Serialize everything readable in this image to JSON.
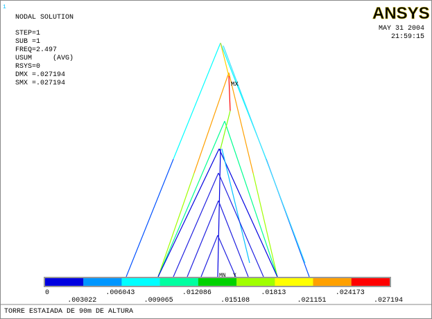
{
  "header": {
    "window_number": "1",
    "title": "NODAL SOLUTION",
    "info": [
      "STEP=1",
      "SUB =1",
      "FREQ=2.497",
      "USUM     (AVG)",
      "RSYS=0",
      "DMX =.027194",
      "SMX =.027194"
    ],
    "logo": "ANSYS",
    "date": "MAY 31 2004",
    "time": "21:59:15"
  },
  "plot": {
    "max_label": "MX",
    "min_label": "MN",
    "axis_label": "Y"
  },
  "legend": {
    "colors": [
      "#0000e0",
      "#0096ff",
      "#00ffff",
      "#00ffa0",
      "#00d200",
      "#a0ff00",
      "#ffff00",
      "#ffa000",
      "#ff0000"
    ],
    "labels": [
      "0",
      ".003022",
      ".006043",
      ".009065",
      ".012086",
      ".015108",
      ".01813",
      ".021151",
      ".024173",
      ".027194"
    ]
  },
  "footer": "TORRE ESTAIADA DE 90m DE ALTURA"
}
